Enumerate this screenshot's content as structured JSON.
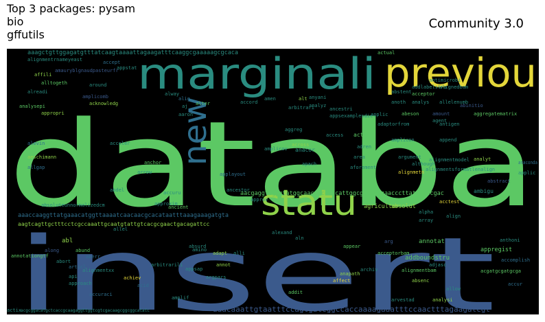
{
  "header": {
    "title_line1": "Top 3 packages: pysam",
    "title_line2": "bio",
    "title_line3": "gffutils",
    "subtitle": "Community 3.0"
  },
  "wordcloud": {
    "background": "#000000",
    "big_words": [
      {
        "text": "databa",
        "color": "#5cc864"
      },
      {
        "text": "insert",
        "color": "#3b5a8c"
      },
      {
        "text": "marginali",
        "color": "#2a8c80"
      },
      {
        "text": "previou",
        "color": "#e3d63a"
      },
      {
        "text": "statu",
        "color": "#8fd24a"
      },
      {
        "text": "new",
        "color": "#2f6f8e"
      }
    ],
    "small_words": [
      "aaagctgttggagatgtttatcaagtaaaattagaagatttcaaggcgaaaaagcgcaca",
      "alignmentrnameyeast",
      "accept",
      "affili",
      "amauryblgnaudpasteurfr",
      "alltogeth",
      "around",
      "alreadi",
      "amplicomb",
      "acknowledg",
      "analysepi",
      "appropri",
      "alevin",
      "aeschimann",
      "allgap",
      "aaaccaaggttatgaaacatggttaaaatcaacaacgcacataatttaaagaaagatgta",
      "aagtcagttgctttcctcgccaaattgcaatgtattgtcacgcgaactgacagattcc",
      "absoluteunnormalizedcm",
      "abl",
      "annotationgtf",
      "aberr",
      "alignmentxx",
      "approach",
      "accuraci",
      "amplif",
      "acid",
      "aacgaggtcgggtatggcaaccgccaccattggcggcgccgaacccttatgggtcgac",
      "aaacaaattgtaatttccagtgatcggccaccaaaagaaatttccaactttagaagatcgt",
      "acgcggacatgctcaccgcaagaggttggtcgtcgacaagcggcggcatatc",
      "abstent",
      "acceptor",
      "abinitio",
      "aggregatematrix",
      "antigen",
      "analyt",
      "alignmetn",
      "anacor",
      "across",
      "access",
      "action",
      "acceler",
      "anchor",
      "arrow",
      "applayout",
      "ancestor",
      "approxim",
      "agricultur",
      "absolut",
      "acctest",
      "ambigu",
      "abstract",
      "applic",
      "anaconda",
      "align",
      "array",
      "appear",
      "arg",
      "annotat",
      "anthoni",
      "appregist",
      "addboundstru",
      "acceptorbam",
      "accomplish",
      "acgatgcgatgcga",
      "archiv",
      "alignmentbam",
      "adjasc",
      "accur",
      "anapath",
      "affect",
      "absenc",
      "allow",
      "analysi",
      "addit",
      "arvestad",
      "arbitrarili",
      "achiev",
      "appsap",
      "argpars",
      "alexand",
      "allel",
      "amino",
      "articl",
      "api",
      "actix",
      "amplicon",
      "append",
      "adapt",
      "alli",
      "annot",
      "absurd",
      "abund",
      "along",
      "abort",
      "abdennur",
      "ancient",
      "appstat",
      "amen",
      "alter",
      "arbitrari",
      "alt",
      "anoth",
      "abeson",
      "analys",
      "allelenumb",
      "amount",
      "agent",
      "actual",
      "ancestri",
      "applic",
      "appsexamplesdic",
      "adren",
      "area",
      "alignmentsformatlenalign",
      "alignmentmodel",
      "although",
      "aforement",
      "amplicov",
      "argument",
      "apach",
      "aggreg",
      "accord",
      "alig",
      "anyani",
      "analyz",
      "adaptorfrom",
      "addlabelstru",
      "alignedbam",
      "antimicrobi",
      "alway",
      "aaron",
      "aj",
      "abdel",
      "accuru",
      "approv",
      "aln",
      "alpha"
    ]
  }
}
